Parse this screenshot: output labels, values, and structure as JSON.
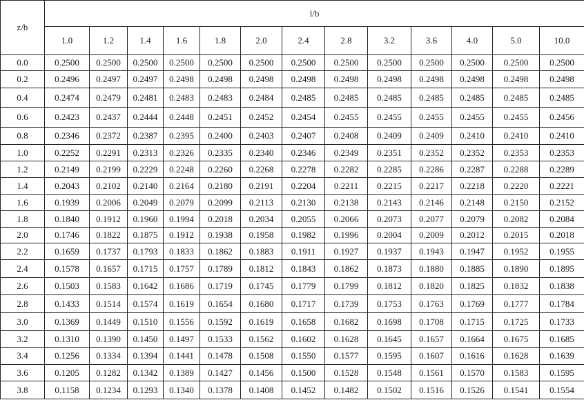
{
  "table": {
    "row_header_label": "z/b",
    "column_group_label": "l/b",
    "columns": [
      "1.0",
      "1.2",
      "1.4",
      "1.6",
      "1.8",
      "2.0",
      "2.4",
      "2.8",
      "3.2",
      "3.6",
      "4.0",
      "5.0",
      "10.0"
    ],
    "rows": [
      {
        "z": "0.0",
        "values": [
          "0.2500",
          "0.2500",
          "0.2500",
          "0.2500",
          "0.2500",
          "0.2500",
          "0.2500",
          "0.2500",
          "0.2500",
          "0.2500",
          "0.2500",
          "0.2500",
          "0.2500"
        ]
      },
      {
        "z": "0.2",
        "values": [
          "0.2496",
          "0.2497",
          "0.2497",
          "0.2498",
          "0.2498",
          "0.2498",
          "0.2498",
          "0.2498",
          "0.2498",
          "0.2498",
          "0.2498",
          "0.2498",
          "0.2498"
        ]
      },
      {
        "z": "0.4",
        "values": [
          "0.2474",
          "0.2479",
          "0.2481",
          "0.2483",
          "0.2483",
          "0.2484",
          "0.2485",
          "0.2485",
          "0.2485",
          "0.2485",
          "0.2485",
          "0.2485",
          "0.2485"
        ]
      },
      {
        "z": "0.6",
        "values": [
          "0.2423",
          "0.2437",
          "0.2444",
          "0.2448",
          "0.2451",
          "0.2452",
          "0.2454",
          "0.2455",
          "0.2455",
          "0.2455",
          "0.2455",
          "0.2455",
          "0.2456"
        ]
      },
      {
        "z": "0.8",
        "values": [
          "0.2346",
          "0.2372",
          "0.2387",
          "0.2395",
          "0.2400",
          "0.2403",
          "0.2407",
          "0.2408",
          "0.2409",
          "0.2409",
          "0.2410",
          "0.2410",
          "0.2410"
        ]
      },
      {
        "z": "1.0",
        "values": [
          "0.2252",
          "0.2291",
          "0.2313",
          "0.2326",
          "0.2335",
          "0.2340",
          "0.2346",
          "0.2349",
          "0.2351",
          "0.2352",
          "0.2352",
          "0.2353",
          "0.2353"
        ]
      },
      {
        "z": "1.2",
        "values": [
          "0.2149",
          "0.2199",
          "0.2229",
          "0.2248",
          "0.2260",
          "0.2268",
          "0.2278",
          "0.2282",
          "0.2285",
          "0.2286",
          "0.2287",
          "0.2288",
          "0.2289"
        ]
      },
      {
        "z": "1.4",
        "values": [
          "0.2043",
          "0.2102",
          "0.2140",
          "0.2164",
          "0.2180",
          "0.2191",
          "0.2204",
          "0.2211",
          "0.2215",
          "0.2217",
          "0.2218",
          "0.2220",
          "0.2221"
        ]
      },
      {
        "z": "1.6",
        "values": [
          "0.1939",
          "0.2006",
          "0.2049",
          "0.2079",
          "0.2099",
          "0.2113",
          "0.2130",
          "0.2138",
          "0.2143",
          "0.2146",
          "0.2148",
          "0.2150",
          "0.2152"
        ]
      },
      {
        "z": "1.8",
        "values": [
          "0.1840",
          "0.1912",
          "0.1960",
          "0.1994",
          "0.2018",
          "0.2034",
          "0.2055",
          "0.2066",
          "0.2073",
          "0.2077",
          "0.2079",
          "0.2082",
          "0.2084"
        ]
      },
      {
        "z": "2.0",
        "values": [
          "0.1746",
          "0.1822",
          "0.1875",
          "0.1912",
          "0.1938",
          "0.1958",
          "0.1982",
          "0.1996",
          "0.2004",
          "0.2009",
          "0.2012",
          "0.2015",
          "0.2018"
        ]
      },
      {
        "z": "2.2",
        "values": [
          "0.1659",
          "0.1737",
          "0.1793",
          "0.1833",
          "0.1862",
          "0.1883",
          "0.1911",
          "0.1927",
          "0.1937",
          "0.1943",
          "0.1947",
          "0.1952",
          "0.1955"
        ]
      },
      {
        "z": "2.4",
        "values": [
          "0.1578",
          "0.1657",
          "0.1715",
          "0.1757",
          "0.1789",
          "0.1812",
          "0.1843",
          "0.1862",
          "0.1873",
          "0.1880",
          "0.1885",
          "0.1890",
          "0.1895"
        ]
      },
      {
        "z": "2.6",
        "values": [
          "0.1503",
          "0.1583",
          "0.1642",
          "0.1686",
          "0.1719",
          "0.1745",
          "0.1779",
          "0.1799",
          "0.1812",
          "0.1820",
          "0.1825",
          "0.1832",
          "0.1838"
        ]
      },
      {
        "z": "2.8",
        "values": [
          "0.1433",
          "0.1514",
          "0.1574",
          "0.1619",
          "0.1654",
          "0.1680",
          "0.1717",
          "0.1739",
          "0.1753",
          "0.1763",
          "0.1769",
          "0.1777",
          "0.1784"
        ]
      },
      {
        "z": "3.0",
        "values": [
          "0.1369",
          "0.1449",
          "0.1510",
          "0.1556",
          "0.1592",
          "0.1619",
          "0.1658",
          "0.1682",
          "0.1698",
          "0.1708",
          "0.1715",
          "0.1725",
          "0.1733"
        ]
      },
      {
        "z": "3.2",
        "values": [
          "0.1310",
          "0.1390",
          "0.1450",
          "0.1497",
          "0.1533",
          "0.1562",
          "0.1602",
          "0.1628",
          "0.1645",
          "0.1657",
          "0.1664",
          "0.1675",
          "0.1685"
        ]
      },
      {
        "z": "3.4",
        "values": [
          "0.1256",
          "0.1334",
          "0.1394",
          "0.1441",
          "0.1478",
          "0.1508",
          "0.1550",
          "0.1577",
          "0.1595",
          "0.1607",
          "0.1616",
          "0.1628",
          "0.1639"
        ]
      },
      {
        "z": "3.6",
        "values": [
          "0.1205",
          "0.1282",
          "0.1342",
          "0.1389",
          "0.1427",
          "0.1456",
          "0.1500",
          "0.1528",
          "0.1548",
          "0.1561",
          "0.1570",
          "0.1583",
          "0.1595"
        ]
      },
      {
        "z": "3.8",
        "values": [
          "0.1158",
          "0.1234",
          "0.1293",
          "0.1340",
          "0.1378",
          "0.1408",
          "0.1452",
          "0.1482",
          "0.1502",
          "0.1516",
          "0.1526",
          "0.1541",
          "0.1554"
        ]
      }
    ]
  }
}
